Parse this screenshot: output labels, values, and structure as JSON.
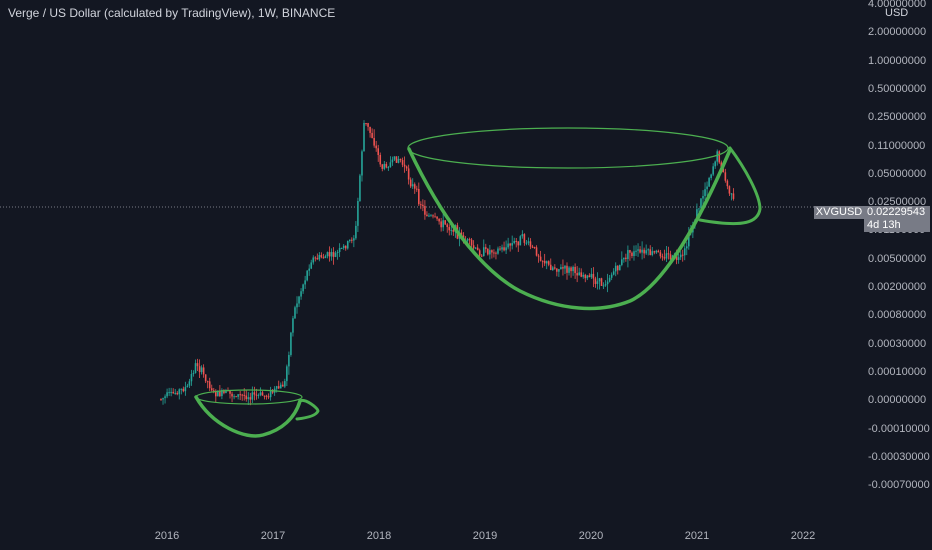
{
  "title": "Verge / US Dollar (calculated by TradingView), 1W, BINANCE",
  "axis": {
    "currency": "USD",
    "y_ticks": [
      "4.00000000",
      "2.00000000",
      "1.00000000",
      "0.50000000",
      "0.25000000",
      "0.11000000",
      "0.05000000",
      "0.02500000",
      "0.01100000",
      "0.00500000",
      "0.00200000",
      "0.00080000",
      "0.00030000",
      "0.00010000",
      "0.00000000",
      "-0.00010000",
      "-0.00030000",
      "-0.00070000"
    ],
    "x_ticks": [
      "2016",
      "2017",
      "2018",
      "2019",
      "2020",
      "2021",
      "2022"
    ]
  },
  "price_label": {
    "symbol": "XVGUSD",
    "value": "0.02229543",
    "countdown": "4d 13h"
  },
  "colors": {
    "background": "#131722",
    "up": "#26a69a",
    "down": "#ef5350",
    "pattern": "#4caf50",
    "axis_text": "#b2b5be"
  },
  "chart_data": {
    "type": "candlestick",
    "title": "Verge / US Dollar (calculated by TradingView), 1W, BINANCE",
    "interval": "1W",
    "exchange": "BINANCE",
    "y_scale": "custom (pseudo-log, as printed ticks)",
    "x_range": [
      "2016-01",
      "2021-07"
    ],
    "last_price": 0.02229543,
    "approximate_close_path": [
      {
        "date": "2016-01",
        "price": 8e-06
      },
      {
        "date": "2016-04",
        "price": 5e-05
      },
      {
        "date": "2016-05",
        "price": 0.00015
      },
      {
        "date": "2016-07",
        "price": 3e-05
      },
      {
        "date": "2016-10",
        "price": 2e-05
      },
      {
        "date": "2017-01",
        "price": 2e-05
      },
      {
        "date": "2017-03",
        "price": 6e-05
      },
      {
        "date": "2017-04",
        "price": 0.0009
      },
      {
        "date": "2017-06",
        "price": 0.005
      },
      {
        "date": "2017-09",
        "price": 0.006
      },
      {
        "date": "2017-11",
        "price": 0.01
      },
      {
        "date": "2017-12",
        "price": 0.23
      },
      {
        "date": "2018-01",
        "price": 0.14
      },
      {
        "date": "2018-02",
        "price": 0.06
      },
      {
        "date": "2018-04",
        "price": 0.08
      },
      {
        "date": "2018-07",
        "price": 0.018
      },
      {
        "date": "2018-10",
        "price": 0.012
      },
      {
        "date": "2019-01",
        "price": 0.006
      },
      {
        "date": "2019-04",
        "price": 0.007
      },
      {
        "date": "2019-06",
        "price": 0.009
      },
      {
        "date": "2019-09",
        "price": 0.004
      },
      {
        "date": "2019-12",
        "price": 0.0035
      },
      {
        "date": "2020-03",
        "price": 0.0022
      },
      {
        "date": "2020-06",
        "price": 0.006
      },
      {
        "date": "2020-09",
        "price": 0.006
      },
      {
        "date": "2020-12",
        "price": 0.005
      },
      {
        "date": "2021-02",
        "price": 0.025
      },
      {
        "date": "2021-04",
        "price": 0.09
      },
      {
        "date": "2021-05",
        "price": 0.04
      },
      {
        "date": "2021-06",
        "price": 0.022
      }
    ],
    "annotations": [
      "cup-and-handle pattern 2016–2017",
      "cup-and-handle pattern 2018–2021"
    ]
  }
}
